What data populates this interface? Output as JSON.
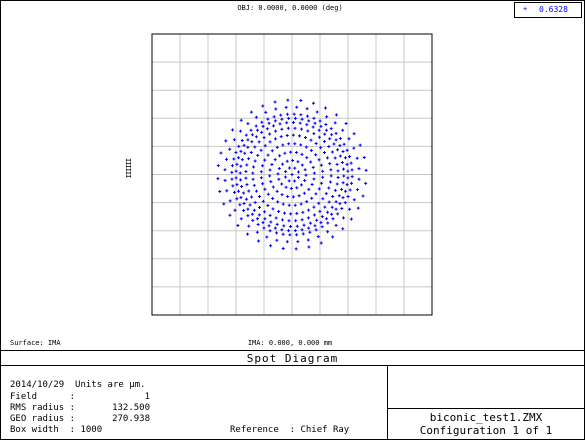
{
  "header": {
    "obj_label": "OBJ: 0.0000, 0.0000 (deg)",
    "wavelength_marker": "+",
    "wavelength": "0.6328"
  },
  "plot": {
    "surface_label": "Surface: IMA",
    "ima_label": "IMA: 0.000, 0.000 mm",
    "side_marks": "IIIIII"
  },
  "title": "Spot Diagram",
  "info": {
    "date_units": "2014/10/29  Units are µm.",
    "field_label": "Field      :",
    "field_value": "1",
    "rms_label": "RMS radius :",
    "rms_value": "132.500",
    "geo_label": "GEO radius :",
    "geo_value": "270.938",
    "box_width": "Box width  : 1000",
    "reference": "Reference  : Chief Ray"
  },
  "file": {
    "name": "biconic_test1.ZMX",
    "config": "Configuration 1 of 1"
  },
  "colors": {
    "spots": "#0000ff",
    "grid": "#c8c8c8"
  },
  "chart_data": {
    "type": "scatter",
    "box_width": 1000,
    "units": "µm",
    "xlim": [
      -500,
      500
    ],
    "ylim": [
      -500,
      500
    ],
    "grid": true,
    "series": [
      {
        "wavelength": "0.6328",
        "rms_radius": 132.5,
        "geo_radius": 270.938,
        "rings": [
          {
            "radius": 0,
            "count": 1
          },
          {
            "radius": 25,
            "count": 8
          },
          {
            "radius": 50,
            "count": 16
          },
          {
            "radius": 80,
            "count": 24
          },
          {
            "radius": 110,
            "count": 32
          },
          {
            "radius": 140,
            "count": 40
          },
          {
            "radius": 165,
            "count": 44
          },
          {
            "radius": 185,
            "count": 48
          },
          {
            "radius": 200,
            "count": 52
          },
          {
            "radius": 215,
            "count": 56
          },
          {
            "radius": 240,
            "count": 40
          },
          {
            "radius": 265,
            "count": 36
          }
        ]
      }
    ]
  }
}
